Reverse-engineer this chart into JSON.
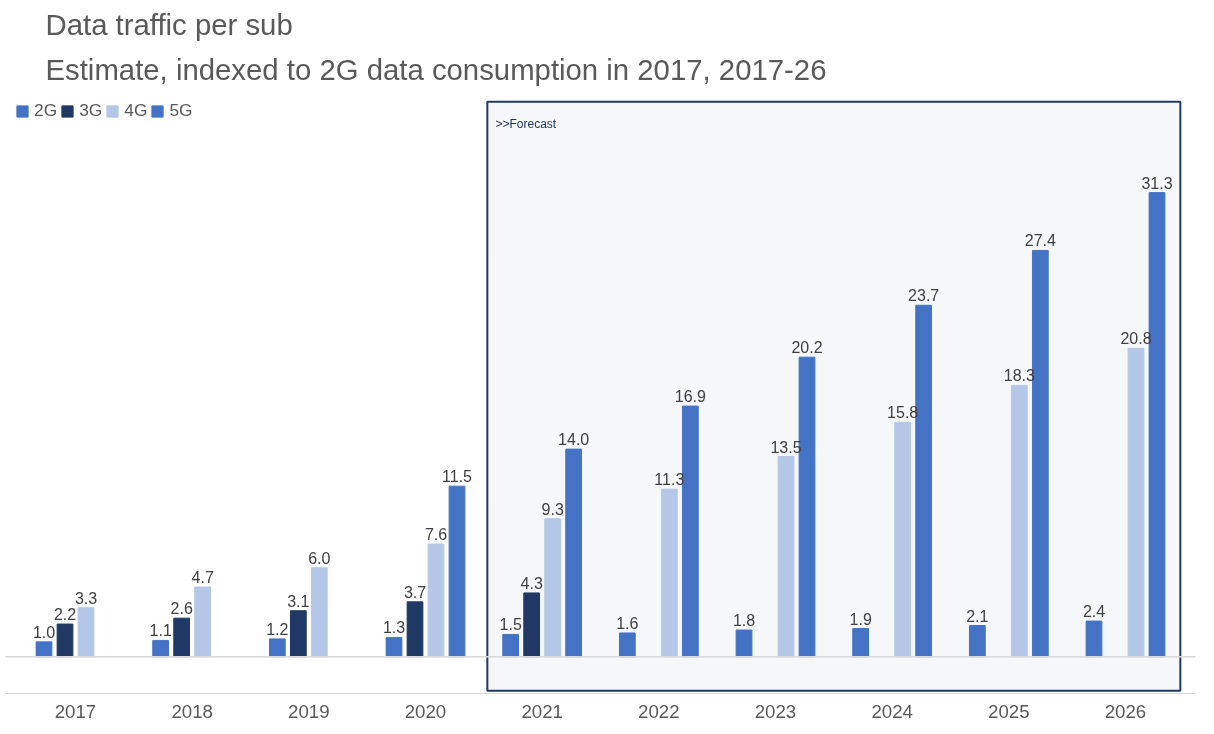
{
  "chart_data": {
    "type": "bar",
    "title": "Data traffic per sub",
    "subtitle": "Estimate, indexed to 2G data consumption in 2017, 2017-26",
    "categories": [
      "2017",
      "2018",
      "2019",
      "2020",
      "2021",
      "2022",
      "2023",
      "2024",
      "2025",
      "2026"
    ],
    "series": [
      {
        "name": "2G",
        "color": "#4472c4",
        "values": [
          1.0,
          1.1,
          1.2,
          1.3,
          1.5,
          1.6,
          1.8,
          1.9,
          2.1,
          2.4
        ],
        "value_labels": [
          "1.0",
          "1.1",
          "1.2",
          "1.3",
          "1.5",
          "1.6",
          "1.8",
          "1.9",
          "2.1",
          "2.4"
        ]
      },
      {
        "name": "3G",
        "color": "#203864",
        "values": [
          2.2,
          2.6,
          3.1,
          3.7,
          4.3,
          null,
          null,
          null,
          null,
          null
        ],
        "value_labels": [
          "2.2",
          "2.6",
          "3.1",
          "3.7",
          "4.3",
          null,
          null,
          null,
          null,
          null
        ]
      },
      {
        "name": "4G",
        "color": "#b4c7e7",
        "values": [
          3.3,
          4.7,
          6.0,
          7.6,
          9.3,
          11.3,
          13.5,
          15.8,
          18.3,
          20.8
        ],
        "value_labels": [
          "3.3",
          "4.7",
          "6.0",
          "7.6",
          "9.3",
          "11.3",
          "13.5",
          "15.8",
          "18.3",
          "20.8"
        ]
      },
      {
        "name": "5G",
        "color": "#4472c4",
        "values": [
          null,
          null,
          null,
          11.5,
          14.0,
          16.9,
          20.2,
          23.7,
          27.4,
          31.3
        ],
        "value_labels": [
          null,
          null,
          null,
          "11.5",
          "14.0",
          "16.9",
          "20.2",
          "23.7",
          "27.4",
          "31.3"
        ]
      }
    ],
    "bands": [
      {
        "axis": "x",
        "from": "2021",
        "to": "2026",
        "label": ">>Forecast",
        "color": "#203864"
      }
    ],
    "legend": "top left",
    "grid": false
  }
}
